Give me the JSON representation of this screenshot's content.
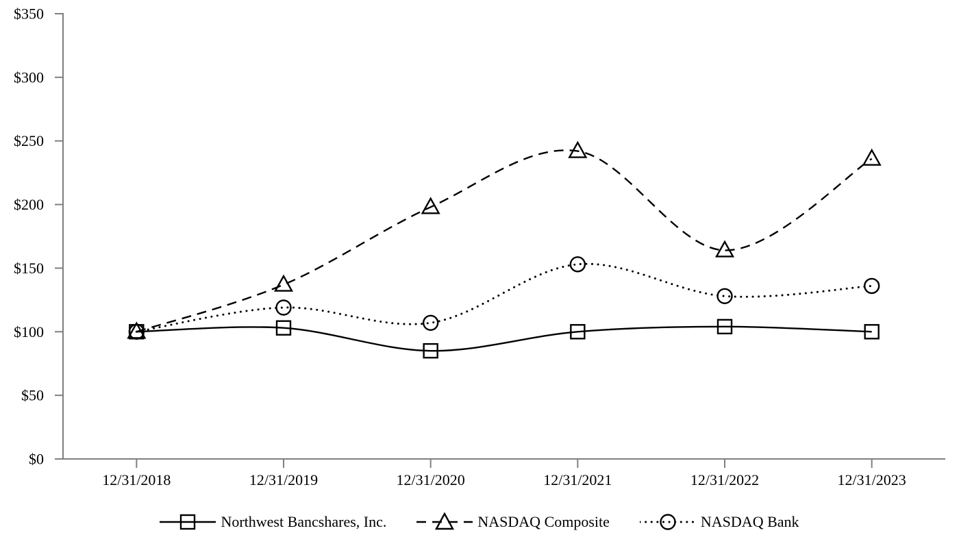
{
  "chart_data": {
    "type": "line",
    "title": "",
    "xlabel": "",
    "ylabel": "",
    "categories": [
      "12/31/2018",
      "12/31/2019",
      "12/31/2020",
      "12/31/2021",
      "12/31/2022",
      "12/31/2023"
    ],
    "series": [
      {
        "name": "Northwest Bancshares, Inc.",
        "values": [
          100,
          103,
          85,
          100,
          104,
          100
        ],
        "line_style": "solid",
        "marker": "square"
      },
      {
        "name": "NASDAQ Composite",
        "values": [
          100,
          137,
          198,
          242,
          164,
          236
        ],
        "line_style": "dashed",
        "marker": "triangle"
      },
      {
        "name": "NASDAQ Bank",
        "values": [
          100,
          119,
          107,
          153,
          128,
          136
        ],
        "line_style": "dotted",
        "marker": "circle"
      }
    ],
    "y_axis": {
      "min": 0,
      "max": 350,
      "tick_step": 50,
      "tick_values": [
        0,
        50,
        100,
        150,
        200,
        250,
        300,
        350
      ],
      "tick_labels": [
        "$0",
        "$50",
        "$100",
        "$150",
        "$200",
        "$250",
        "$300",
        "$350"
      ]
    },
    "x_axis": {
      "tick_labels": [
        "12/31/2018",
        "12/31/2019",
        "12/31/2020",
        "12/31/2021",
        "12/31/2022",
        "12/31/2023"
      ]
    },
    "legend": {
      "position": "bottom",
      "entries": [
        "Northwest Bancshares, Inc.",
        "NASDAQ Composite",
        "NASDAQ Bank"
      ]
    },
    "grid": false,
    "curve": "smooth",
    "colors": {
      "series": "#000000",
      "axis": "#7f7f7f",
      "text": "#000000",
      "background": "#ffffff"
    }
  }
}
